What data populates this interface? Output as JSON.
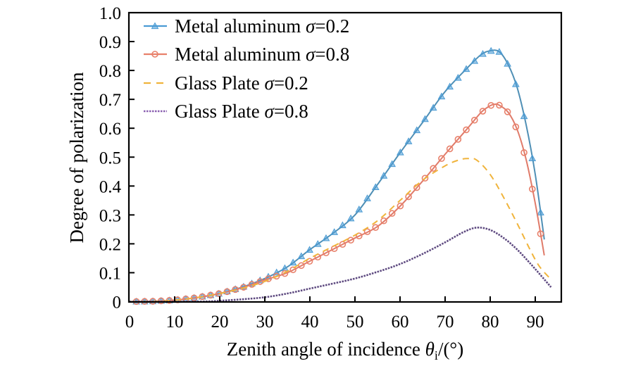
{
  "chart_data": {
    "type": "line",
    "title": "",
    "xlabel": "Zenith angle of incidence θi/(°)",
    "xlabel_parts": {
      "main": "Zenith angle of incidence ",
      "symbol": "θ",
      "subscript": "i",
      "unit": "/(°)"
    },
    "ylabel": "Degree of polarization",
    "xlim": [
      0,
      96
    ],
    "ylim": [
      0,
      1.0
    ],
    "xticks": [
      0,
      10,
      20,
      30,
      40,
      50,
      60,
      70,
      80,
      90
    ],
    "xtick_labels": [
      "0",
      "10",
      "20",
      "30",
      "40",
      "50",
      "60",
      "70",
      "80",
      "90"
    ],
    "yticks": [
      0,
      0.1,
      0.2,
      0.3,
      0.4,
      0.5,
      0.6,
      0.7,
      0.8,
      0.9,
      1.0
    ],
    "ytick_labels": [
      "0",
      "0.1",
      "0.2",
      "0.3",
      "0.4",
      "0.5",
      "0.6",
      "0.7",
      "0.8",
      "0.9",
      "1.0"
    ],
    "grid": false,
    "legend_position": "top-left",
    "series": [
      {
        "name": "Metal aluminum σ=0.2",
        "label_main": "Metal aluminum ",
        "label_sigma": "σ",
        "label_value": "=0.2",
        "color": "#4a9bd4",
        "line_color": "#4f8fb5",
        "style": "solid",
        "marker": "triangle",
        "x": [
          0,
          5,
          10,
          15,
          20,
          25,
          30,
          35,
          40,
          45,
          50,
          55,
          60,
          65,
          70,
          75,
          78,
          80,
          82,
          84,
          86,
          88,
          90,
          92
        ],
        "y": [
          0,
          0.001,
          0.005,
          0.014,
          0.028,
          0.05,
          0.08,
          0.12,
          0.18,
          0.235,
          0.3,
          0.405,
          0.515,
          0.62,
          0.727,
          0.81,
          0.855,
          0.868,
          0.865,
          0.82,
          0.74,
          0.61,
          0.44,
          0.215
        ]
      },
      {
        "name": "Metal aluminum σ=0.8",
        "label_main": "Metal aluminum ",
        "label_sigma": "σ",
        "label_value": "=0.8",
        "color": "#e8806a",
        "line_color": "#e07b6a",
        "style": "solid",
        "marker": "circle",
        "x": [
          0,
          5,
          10,
          15,
          20,
          25,
          30,
          35,
          40,
          45,
          50,
          55,
          60,
          65,
          70,
          75,
          78,
          80,
          81,
          82,
          84,
          86,
          88,
          90,
          92
        ],
        "y": [
          0,
          0.001,
          0.005,
          0.014,
          0.028,
          0.048,
          0.075,
          0.1,
          0.14,
          0.18,
          0.22,
          0.26,
          0.33,
          0.417,
          0.51,
          0.6,
          0.655,
          0.678,
          0.683,
          0.68,
          0.655,
          0.595,
          0.49,
          0.34,
          0.16
        ]
      },
      {
        "name": "Glass Plate σ=0.2",
        "label_main": "Glass Plate ",
        "label_sigma": "σ",
        "label_value": "=0.2",
        "color": "#f0b43c",
        "line_color": "#f0b43c",
        "style": "dashed",
        "marker": "none",
        "x": [
          0,
          5,
          10,
          15,
          20,
          25,
          30,
          35,
          40,
          45,
          50,
          55,
          60,
          65,
          70,
          73,
          75,
          77,
          80,
          83,
          86,
          89,
          91,
          93.6
        ],
        "y": [
          0,
          0.001,
          0.005,
          0.014,
          0.028,
          0.046,
          0.07,
          0.105,
          0.15,
          0.19,
          0.23,
          0.28,
          0.35,
          0.42,
          0.47,
          0.49,
          0.495,
          0.49,
          0.44,
          0.36,
          0.27,
          0.175,
          0.12,
          0.075
        ]
      },
      {
        "name": "Glass Plate σ=0.8",
        "label_main": "Glass Plate ",
        "label_sigma": "σ",
        "label_value": "=0.8",
        "color": "#8a5fb0",
        "line_color": "#5e4a80",
        "style": "dotted",
        "marker": "none",
        "x": [
          0,
          15,
          20,
          25,
          30,
          35,
          40,
          45,
          50,
          55,
          60,
          65,
          70,
          74,
          77,
          80,
          83,
          86,
          89,
          91,
          93.5
        ],
        "y": [
          0,
          0,
          0.003,
          0.008,
          0.015,
          0.028,
          0.045,
          0.062,
          0.08,
          0.103,
          0.13,
          0.165,
          0.205,
          0.24,
          0.256,
          0.248,
          0.22,
          0.18,
          0.13,
          0.095,
          0.05
        ]
      }
    ]
  }
}
